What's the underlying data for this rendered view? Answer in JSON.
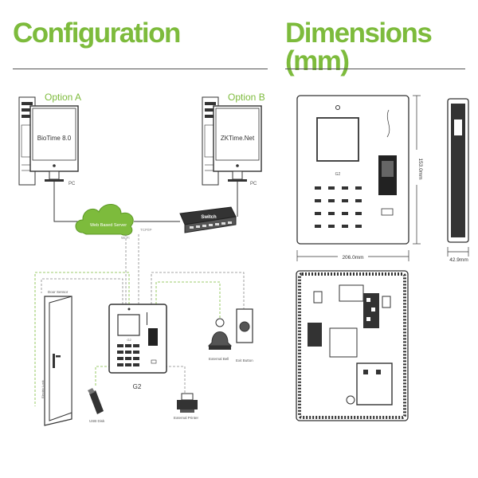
{
  "colors": {
    "accent": "#7dbb3c",
    "line": "#333333",
    "device": "#2b2b2b"
  },
  "headings": {
    "configuration": "Configuration",
    "dimensions": "Dimensions (mm)"
  },
  "configuration": {
    "option_a": "Option A",
    "option_b": "Option B",
    "pc_a_screen": "BioTime 8.0",
    "pc_b_screen": "ZKTime.Net",
    "pc_a_label": "PC",
    "pc_b_label": "PC",
    "cloud_label": "Web Based Server",
    "switch_label": "Switch",
    "wifi_label": "Wi-Fi",
    "tcpip_label": "TCP/IP",
    "door_sensor_label": "Door Sensor",
    "lock_label": "Electric Lock",
    "device_name": "G2",
    "device_screen_label": "G2",
    "usb_label": "USB Disk",
    "printer_label": "External Printer",
    "bell_label": "External Bell",
    "exit_label": "Exit Button"
  },
  "dimensions": {
    "front_screen_label": "G2",
    "width": "206.0mm",
    "height": "153.0mm",
    "depth": "42.9mm"
  }
}
